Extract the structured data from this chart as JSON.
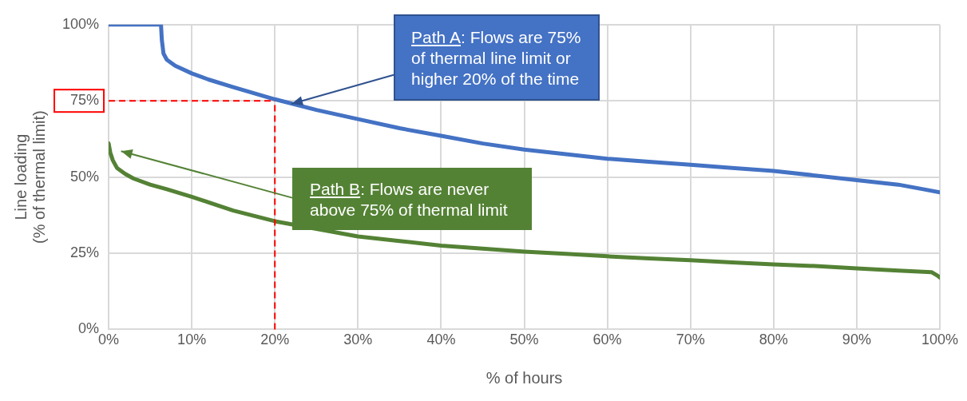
{
  "chart_data": {
    "type": "line",
    "xlabel": "% of hours",
    "ylabel": "Line loading\n(% of thermal limit)",
    "xlim": [
      0,
      100
    ],
    "ylim": [
      0,
      100
    ],
    "xticks": [
      {
        "value": 0,
        "label": "0%"
      },
      {
        "value": 10,
        "label": "10%"
      },
      {
        "value": 20,
        "label": "20%"
      },
      {
        "value": 30,
        "label": "30%"
      },
      {
        "value": 40,
        "label": "40%"
      },
      {
        "value": 50,
        "label": "50%"
      },
      {
        "value": 60,
        "label": "60%"
      },
      {
        "value": 70,
        "label": "70%"
      },
      {
        "value": 80,
        "label": "80%"
      },
      {
        "value": 90,
        "label": "90%"
      },
      {
        "value": 100,
        "label": "100%"
      }
    ],
    "yticks": [
      {
        "value": 0,
        "label": "0%"
      },
      {
        "value": 25,
        "label": "25%"
      },
      {
        "value": 50,
        "label": "50%"
      },
      {
        "value": 75,
        "label": "75%"
      },
      {
        "value": 100,
        "label": "100%"
      }
    ],
    "grid": true,
    "legend": false,
    "marker": "none",
    "line_style": "solid",
    "series": [
      {
        "color": "#4472c4",
        "x": [
          0,
          6.3,
          6.4,
          6.6,
          7,
          8,
          10,
          12,
          15,
          20,
          25,
          30,
          35,
          40,
          45,
          50,
          55,
          60,
          65,
          70,
          75,
          80,
          85,
          90,
          95,
          98,
          100
        ],
        "values": [
          100,
          100,
          95,
          90.5,
          88.5,
          86.5,
          84,
          82,
          79.5,
          75.5,
          72,
          69,
          66,
          63.5,
          61,
          59,
          57.5,
          56,
          55,
          54,
          53,
          52,
          50.5,
          49,
          47.5,
          46,
          45
        ]
      },
      {
        "color": "#548235",
        "x": [
          0,
          0.2,
          0.5,
          1,
          2,
          3,
          5,
          7,
          10,
          15,
          20,
          25,
          30,
          35,
          40,
          45,
          50,
          55,
          60,
          65,
          70,
          75,
          80,
          85,
          90,
          95,
          99,
          99.8,
          100
        ],
        "values": [
          61,
          58,
          55.5,
          53,
          51,
          49.5,
          47.5,
          46,
          43.5,
          39,
          35.5,
          33,
          30.5,
          29,
          27.5,
          26.5,
          25.5,
          24.8,
          24,
          23.3,
          22.7,
          22,
          21.3,
          20.8,
          20,
          19.3,
          18.8,
          17.5,
          17
        ]
      }
    ],
    "ref_lines": [
      {
        "axis": "x",
        "value": 20,
        "color": "#ff0000",
        "line_style": "dashed"
      },
      {
        "axis": "y",
        "value": 75,
        "color": "#ff0000",
        "line_style": "dashed"
      }
    ],
    "annotations": [
      {
        "text": "Path A: Flows are 75% of thermal line limit or higher 20% of the time",
        "x": 22,
        "y": 74
      },
      "Path B: Flows are never above 75% of thermal limit"
    ]
  }
}
